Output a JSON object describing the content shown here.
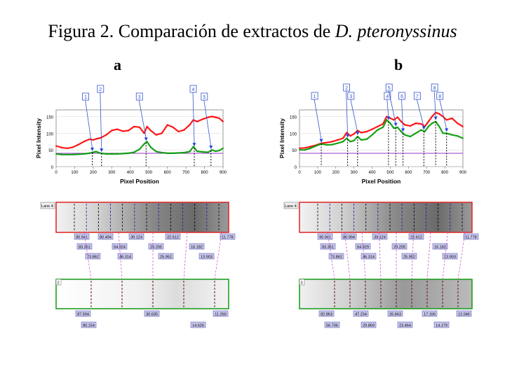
{
  "title": {
    "prefix": "Figura 2. Comparación de extractos de ",
    "species": "D. pteronyssinus"
  },
  "chart_data": [
    {
      "panel": "a",
      "type": "line",
      "xlabel": "Pixel Position",
      "ylabel": "Pixel Intensity",
      "xlim": [
        0,
        900
      ],
      "ylim": [
        0,
        170
      ],
      "x_ticks": [
        "0",
        "100",
        "200",
        "300",
        "400",
        "500",
        "600",
        "700",
        "800",
        "900"
      ],
      "y_ticks": [
        "0",
        "50",
        "100",
        "150"
      ],
      "baseline": 40,
      "x": [
        0,
        30,
        60,
        90,
        120,
        150,
        180,
        200,
        215,
        240,
        270,
        300,
        330,
        360,
        390,
        420,
        450,
        475,
        490,
        510,
        540,
        570,
        600,
        630,
        660,
        690,
        720,
        740,
        760,
        790,
        820,
        840,
        860,
        880,
        900
      ],
      "series": [
        {
          "name": "Lane 4",
          "color": "#ff0000",
          "values": [
            62,
            57,
            55,
            58,
            66,
            75,
            82,
            80,
            83,
            86,
            95,
            108,
            112,
            106,
            108,
            120,
            118,
            100,
            120,
            108,
            95,
            100,
            125,
            118,
            105,
            110,
            125,
            140,
            135,
            142,
            148,
            150,
            148,
            145,
            135
          ]
        },
        {
          "name": "Lane 2",
          "color": "#009900",
          "values": [
            38,
            36,
            36,
            36,
            37,
            38,
            40,
            43,
            45,
            40,
            38,
            38,
            38,
            39,
            40,
            43,
            52,
            68,
            75,
            58,
            45,
            42,
            40,
            40,
            41,
            42,
            45,
            60,
            46,
            44,
            43,
            50,
            46,
            48,
            55
          ]
        }
      ],
      "peaks": [
        {
          "id": "1",
          "x": 195
        },
        {
          "id": "2",
          "x": 245
        },
        {
          "id": "3",
          "x": 485
        },
        {
          "id": "4",
          "x": 745
        },
        {
          "id": "5",
          "x": 835
        }
      ],
      "gel_top_values": [
        "90.941",
        "80.494",
        "39.124",
        "22.612",
        "11.778"
      ],
      "gel_mid_values": [
        "83.351",
        "64.924",
        "29.205",
        "16.182"
      ],
      "gel_low_values": [
        "73.862",
        "46.314",
        "25.952",
        "13.903"
      ],
      "gel_top_lane": "Lane 4",
      "gel_bottom_lane": "2",
      "gel_bottom_values_a": [
        "87.594",
        "30.635",
        "11.260"
      ],
      "gel_bottom_values_b": [
        "80.154",
        "14.626"
      ]
    },
    {
      "panel": "b",
      "type": "line",
      "xlabel": "Pixel Position",
      "ylabel": "Pixel Intensity",
      "xlim": [
        0,
        900
      ],
      "ylim": [
        0,
        170
      ],
      "x_ticks": [
        "0",
        "100",
        "200",
        "300",
        "400",
        "500",
        "600",
        "700",
        "800",
        "900"
      ],
      "y_ticks": [
        "0",
        "50",
        "100",
        "150"
      ],
      "baseline": 40,
      "x": [
        0,
        30,
        60,
        90,
        120,
        150,
        180,
        210,
        240,
        260,
        280,
        300,
        320,
        340,
        370,
        400,
        430,
        460,
        480,
        500,
        520,
        540,
        560,
        580,
        610,
        640,
        670,
        690,
        710,
        730,
        750,
        770,
        790,
        810,
        840,
        870,
        900
      ],
      "series": [
        {
          "name": "Lane 4",
          "color": "#ff0000",
          "values": [
            55,
            56,
            60,
            64,
            70,
            72,
            75,
            80,
            85,
            102,
            92,
            98,
            108,
            102,
            105,
            112,
            120,
            128,
            150,
            145,
            140,
            148,
            135,
            125,
            122,
            130,
            128,
            120,
            135,
            150,
            162,
            158,
            150,
            140,
            145,
            130,
            120
          ]
        },
        {
          "name": "Lane 3",
          "color": "#009900",
          "values": [
            50,
            50,
            55,
            62,
            68,
            65,
            66,
            70,
            75,
            85,
            75,
            78,
            90,
            80,
            82,
            95,
            110,
            118,
            140,
            130,
            115,
            118,
            105,
            95,
            90,
            100,
            110,
            105,
            120,
            130,
            135,
            120,
            100,
            100,
            95,
            92,
            85
          ]
        }
      ],
      "peaks": [
        {
          "id": "1",
          "x": 120
        },
        {
          "id": "2",
          "x": 265
        },
        {
          "id": "3",
          "x": 320
        },
        {
          "id": "4",
          "x": 490
        },
        {
          "id": "5",
          "x": 530
        },
        {
          "id": "6",
          "x": 570
        },
        {
          "id": "7",
          "x": 685
        },
        {
          "id": "8",
          "x": 750
        },
        {
          "id": "8b",
          "label": "8",
          "x": 810
        }
      ],
      "gel_top_values": [
        "90.941",
        "80.994",
        "39.124",
        "22.612",
        "11.778"
      ],
      "gel_mid_values": [
        "83.351",
        "64.829",
        "29.205",
        "16.182"
      ],
      "gel_low_values": [
        "73.862",
        "46.314",
        "25.952",
        "13.903"
      ],
      "gel_top_lane": "Lane 4",
      "gel_bottom_lane": "3",
      "gel_bottom_values_a": [
        "82.863",
        "47.234",
        "26.843",
        "17.166",
        "12.046"
      ],
      "gel_bottom_values_b": [
        "56.706",
        "29.869",
        "23.464",
        "14.179"
      ]
    }
  ]
}
